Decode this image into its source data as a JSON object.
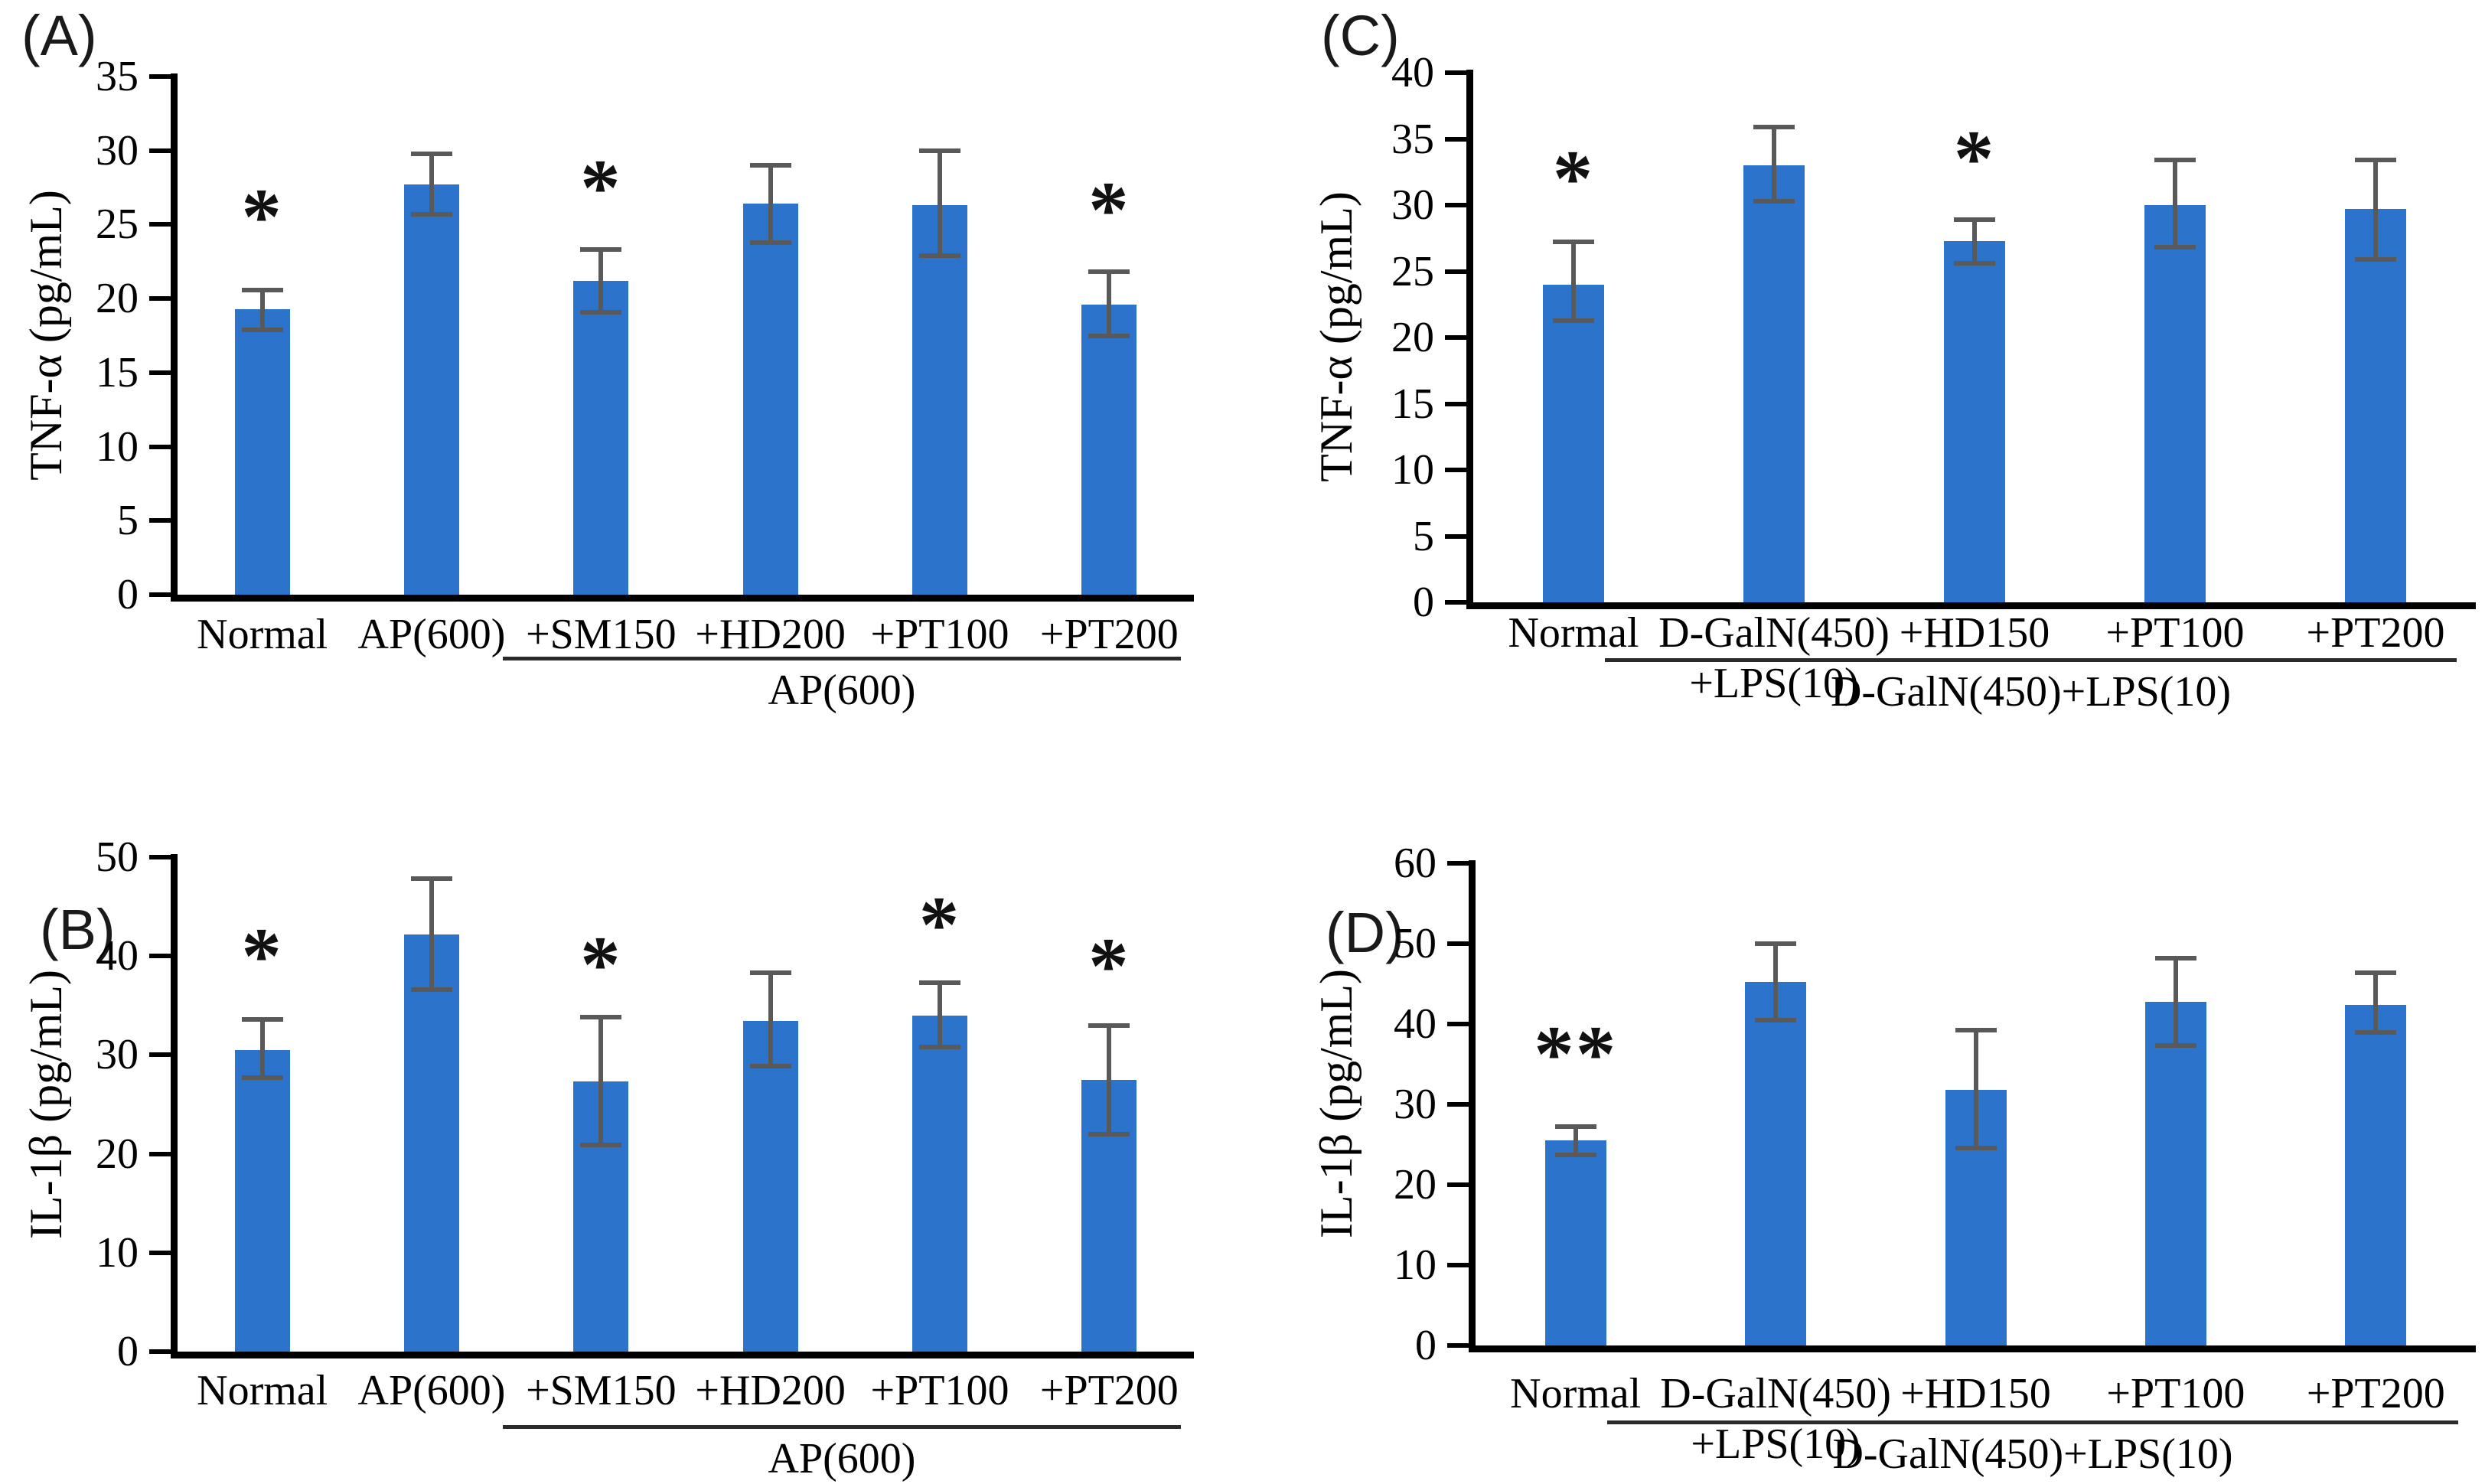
{
  "figure_bg": "#ffffff",
  "bar_color": "#2B73CB",
  "error_color": "#595959",
  "axis_color": "#000000",
  "chart_data": [
    {
      "type": "bar",
      "panel_id": "A",
      "panel": "(A)",
      "title": "",
      "xlabel": "",
      "ylabel": "TNF-α (pg/mL)",
      "ylim": [
        0,
        35
      ],
      "ytick_step": 5,
      "yticks": [
        0,
        5,
        10,
        15,
        20,
        25,
        30,
        35
      ],
      "grid": false,
      "legend": "none",
      "categories": [
        "Normal",
        "AP(600)",
        "+SM150",
        "+HD200",
        "+PT100",
        "+PT200"
      ],
      "values": [
        19.3,
        27.7,
        21.2,
        26.4,
        26.3,
        19.6
      ],
      "error_upper": [
        20.6,
        29.8,
        23.3,
        29.0,
        30.0,
        21.8
      ],
      "error_lower": [
        17.9,
        25.7,
        19.1,
        23.8,
        22.9,
        17.5
      ],
      "significance": [
        "*",
        "",
        "*",
        "",
        "",
        "*"
      ],
      "sig_y": [
        26.2,
        null,
        28.2,
        null,
        null,
        26.7
      ],
      "group_bracket": {
        "label": "AP(600)",
        "start_index": 2,
        "end_index": 5
      }
    },
    {
      "type": "bar",
      "panel_id": "B",
      "panel": "(B)",
      "title": "",
      "xlabel": "",
      "ylabel": "IL-1β (pg/mL)",
      "ylim": [
        0,
        50
      ],
      "ytick_step": 10,
      "yticks": [
        0,
        10,
        20,
        30,
        40,
        50
      ],
      "grid": false,
      "legend": "none",
      "categories": [
        "Normal",
        "AP(600)",
        "+SM150",
        "+HD200",
        "+PT100",
        "+PT200"
      ],
      "values": [
        30.5,
        42.2,
        27.3,
        33.4,
        34.0,
        27.5
      ],
      "error_upper": [
        33.6,
        47.8,
        33.8,
        38.3,
        37.3,
        33.0
      ],
      "error_lower": [
        27.7,
        36.6,
        20.9,
        28.9,
        30.8,
        22.0
      ],
      "significance": [
        "*",
        "",
        "*",
        "",
        "*",
        "*"
      ],
      "sig_y": [
        41.0,
        null,
        40.2,
        null,
        44.2,
        40.0
      ],
      "group_bracket": {
        "label": "AP(600)",
        "start_index": 2,
        "end_index": 5
      }
    },
    {
      "type": "bar",
      "panel_id": "C",
      "panel": "(C)",
      "title": "",
      "xlabel": "",
      "ylabel": "TNF-α (pg/mL)",
      "ylim": [
        0,
        40
      ],
      "ytick_step": 5,
      "yticks": [
        0,
        5,
        10,
        15,
        20,
        25,
        30,
        35,
        40
      ],
      "grid": false,
      "legend": "none",
      "categories": [
        "Normal",
        "D-GalN(450)\n+LPS(10)",
        "+HD150",
        "+PT100",
        "+PT200"
      ],
      "values": [
        24.0,
        33.0,
        27.3,
        30.0,
        29.7
      ],
      "error_upper": [
        27.2,
        35.9,
        28.9,
        33.4,
        33.4
      ],
      "error_lower": [
        21.3,
        30.3,
        25.6,
        26.8,
        25.9
      ],
      "significance": [
        "*",
        "",
        "*",
        "",
        ""
      ],
      "sig_y": [
        32.8,
        null,
        34.3,
        null,
        null
      ],
      "group_bracket": {
        "label": "D-GalN(450)+LPS(10)",
        "start_index": 2,
        "end_index": 4
      }
    },
    {
      "type": "bar",
      "panel_id": "D",
      "panel": "(D)",
      "title": "",
      "xlabel": "",
      "ylabel": "IL-1β (pg/mL)",
      "ylim": [
        0,
        60
      ],
      "ytick_step": 10,
      "yticks": [
        0,
        10,
        20,
        30,
        40,
        50,
        60
      ],
      "grid": false,
      "legend": "none",
      "categories": [
        "Normal",
        "D-GalN(450)\n+LPS(10)",
        "+HD150",
        "+PT100",
        "+PT200"
      ],
      "values": [
        25.5,
        45.2,
        31.8,
        42.8,
        42.4
      ],
      "error_upper": [
        27.2,
        50.0,
        39.2,
        48.2,
        46.4
      ],
      "error_lower": [
        23.7,
        40.5,
        24.6,
        37.3,
        39.0
      ],
      "significance": [
        "**",
        "",
        "",
        "",
        ""
      ],
      "sig_y": [
        37.5,
        null,
        null,
        null,
        null
      ],
      "group_bracket": {
        "label": "D-GalN(450)+LPS(10)",
        "start_index": 2,
        "end_index": 4
      }
    }
  ]
}
